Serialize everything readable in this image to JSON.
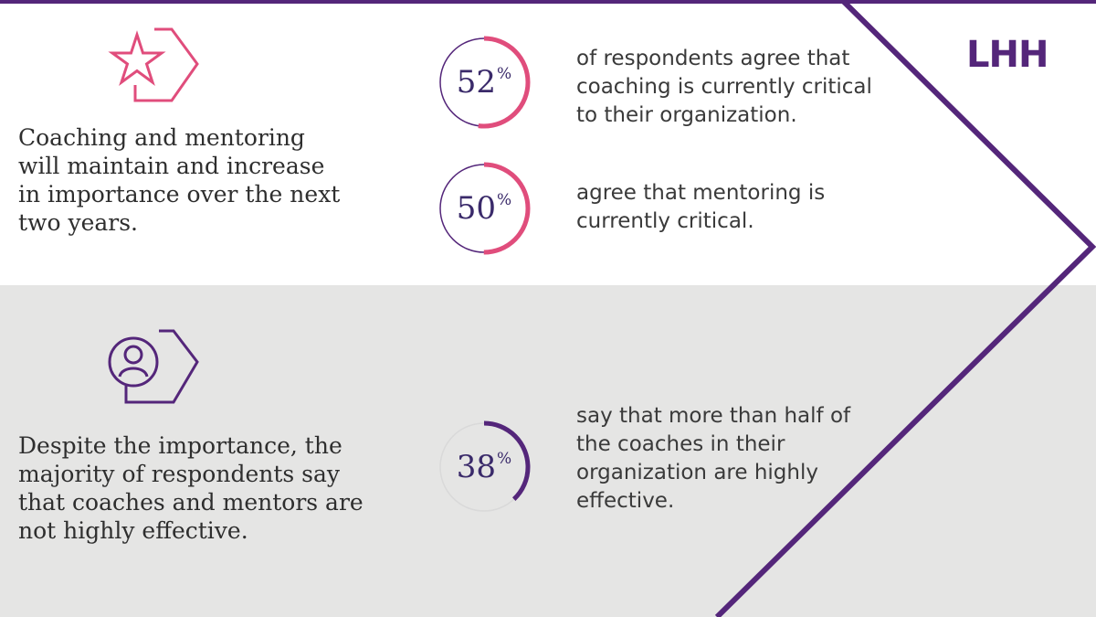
{
  "brand": {
    "logo_text": "LHH"
  },
  "colors": {
    "purple": "#54267a",
    "pink": "#e04d7c",
    "gray_band": "#e5e5e4",
    "ring_track": "#d9d9d9",
    "number": "#3a2a6a"
  },
  "section_top": {
    "icon": "star-icon",
    "claim": "Coaching and mentoring will maintain and increase in importance over the next two years.",
    "stats": [
      {
        "value": "52",
        "percent_sign": "%",
        "fraction": 0.52,
        "ring_color": "pink",
        "description": "of respondents agree that coaching is currently critical to their organization."
      },
      {
        "value": "50",
        "percent_sign": "%",
        "fraction": 0.5,
        "ring_color": "pink",
        "description": "agree that mentoring is currently critical."
      }
    ]
  },
  "section_bottom": {
    "icon": "person-icon",
    "claim": "Despite the importance, the majority of respondents say that coaches and mentors are not highly effective.",
    "stats": [
      {
        "value": "38",
        "percent_sign": "%",
        "fraction": 0.38,
        "ring_color": "purple",
        "description": "say that more than half of the coaches in their organization are highly effective."
      }
    ]
  }
}
